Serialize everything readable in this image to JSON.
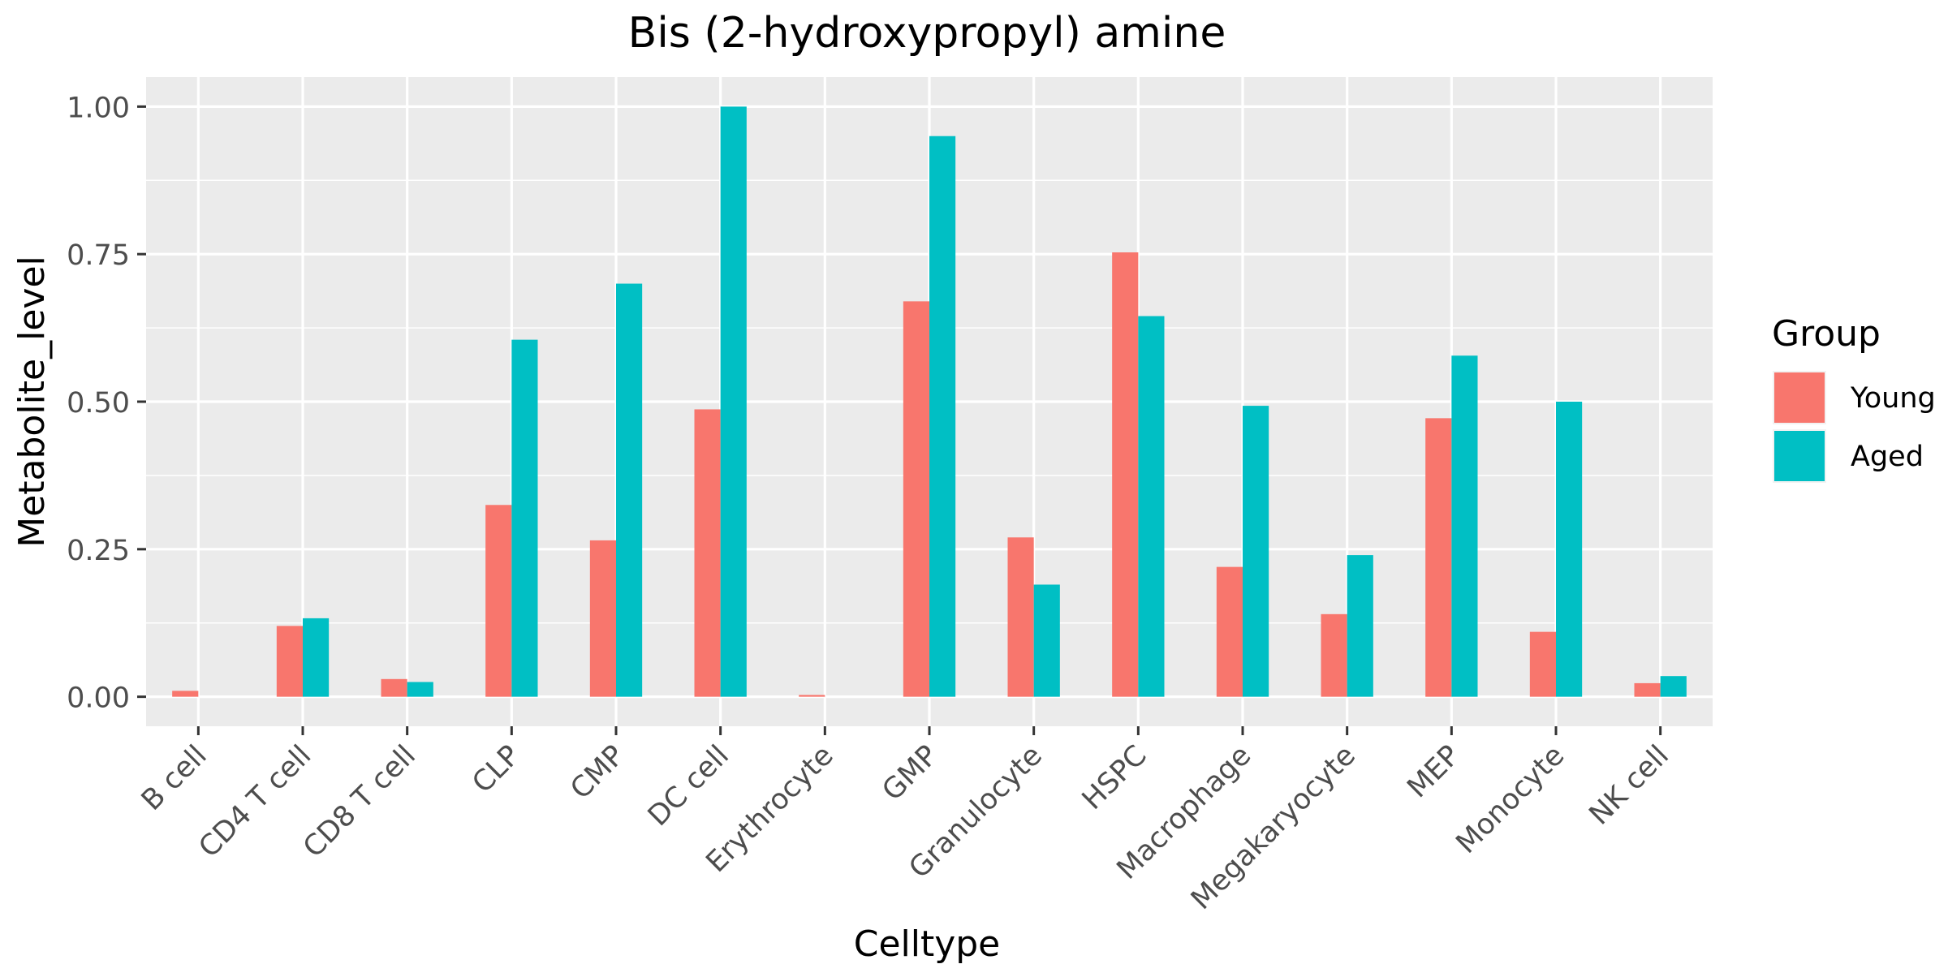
{
  "chart_data": {
    "type": "bar",
    "title": "Bis (2-hydroxypropyl) amine",
    "xlabel": "Celltype",
    "ylabel": "Metabolite_level",
    "ylim": [
      -0.05,
      1.05
    ],
    "yticks": [
      0.0,
      0.25,
      0.5,
      0.75,
      1.0
    ],
    "ytick_labels": [
      "0.00",
      "0.25",
      "0.50",
      "0.75",
      "1.00"
    ],
    "grid": true,
    "legend": {
      "title": "Group",
      "placement": "right"
    },
    "categories": [
      "B cell",
      "CD4 T cell",
      "CD8 T cell",
      "CLP",
      "CMP",
      "DC cell",
      "Erythrocyte",
      "GMP",
      "Granulocyte",
      "HSPC",
      "Macrophage",
      "Megakaryocyte",
      "MEP",
      "Monocyte",
      "NK cell"
    ],
    "series": [
      {
        "name": "Young",
        "color": "#F8766D",
        "values": [
          0.01,
          0.12,
          0.03,
          0.325,
          0.265,
          0.487,
          0.003,
          0.67,
          0.27,
          0.753,
          0.22,
          0.14,
          0.472,
          0.11,
          0.023
        ]
      },
      {
        "name": "Aged",
        "color": "#00BFC4",
        "values": [
          0.0,
          0.133,
          0.025,
          0.605,
          0.7,
          1.0,
          0.0,
          0.95,
          0.19,
          0.645,
          0.493,
          0.24,
          0.578,
          0.5,
          0.035
        ]
      }
    ],
    "colors": {
      "panel_background": "#EBEBEB",
      "grid_line": "#FFFFFF",
      "axis_text": "#4D4D4D",
      "tick": "#333333",
      "text": "#000000"
    }
  }
}
